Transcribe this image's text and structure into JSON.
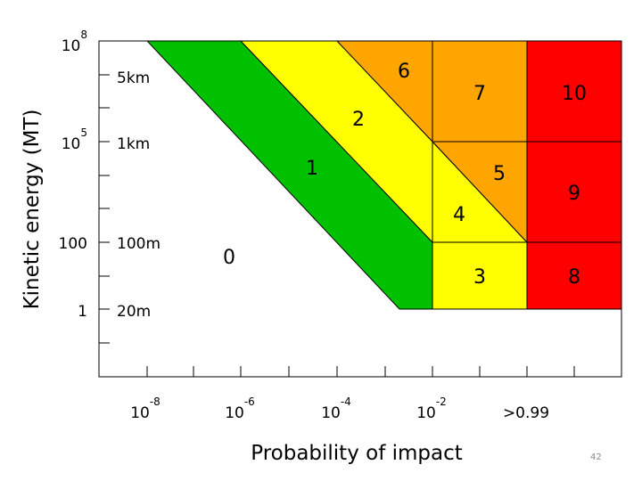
{
  "diagram": {
    "ylabel": "Kinetic energy (MT)",
    "xlabel": "Probability of impact",
    "y_energy_ticks": [
      {
        "base": "10",
        "exp": "8"
      },
      {
        "base": "10",
        "exp": "5"
      },
      {
        "base": "100",
        "exp": ""
      },
      {
        "base": "1",
        "exp": ""
      }
    ],
    "y_size_ticks": [
      "5km",
      "1km",
      "100m",
      "20m"
    ],
    "x_ticks": [
      {
        "base": "10",
        "exp": "-8"
      },
      {
        "base": "10",
        "exp": "-6"
      },
      {
        "base": "10",
        "exp": "-4"
      },
      {
        "base": "10",
        "exp": "-2"
      },
      {
        "base": ">0.99",
        "exp": ""
      }
    ],
    "zones": [
      {
        "label": "0",
        "color": "#ffffff"
      },
      {
        "label": "1",
        "color": "#00c000"
      },
      {
        "label": "2",
        "color": "#ffff00"
      },
      {
        "label": "3",
        "color": "#ffff00"
      },
      {
        "label": "4",
        "color": "#ffff00"
      },
      {
        "label": "5",
        "color": "#ffa500"
      },
      {
        "label": "6",
        "color": "#ffa500"
      },
      {
        "label": "7",
        "color": "#ffa500"
      },
      {
        "label": "8",
        "color": "#ff0000"
      },
      {
        "label": "9",
        "color": "#ff0000"
      },
      {
        "label": "10",
        "color": "#ff0000"
      }
    ]
  },
  "page_number": "42"
}
